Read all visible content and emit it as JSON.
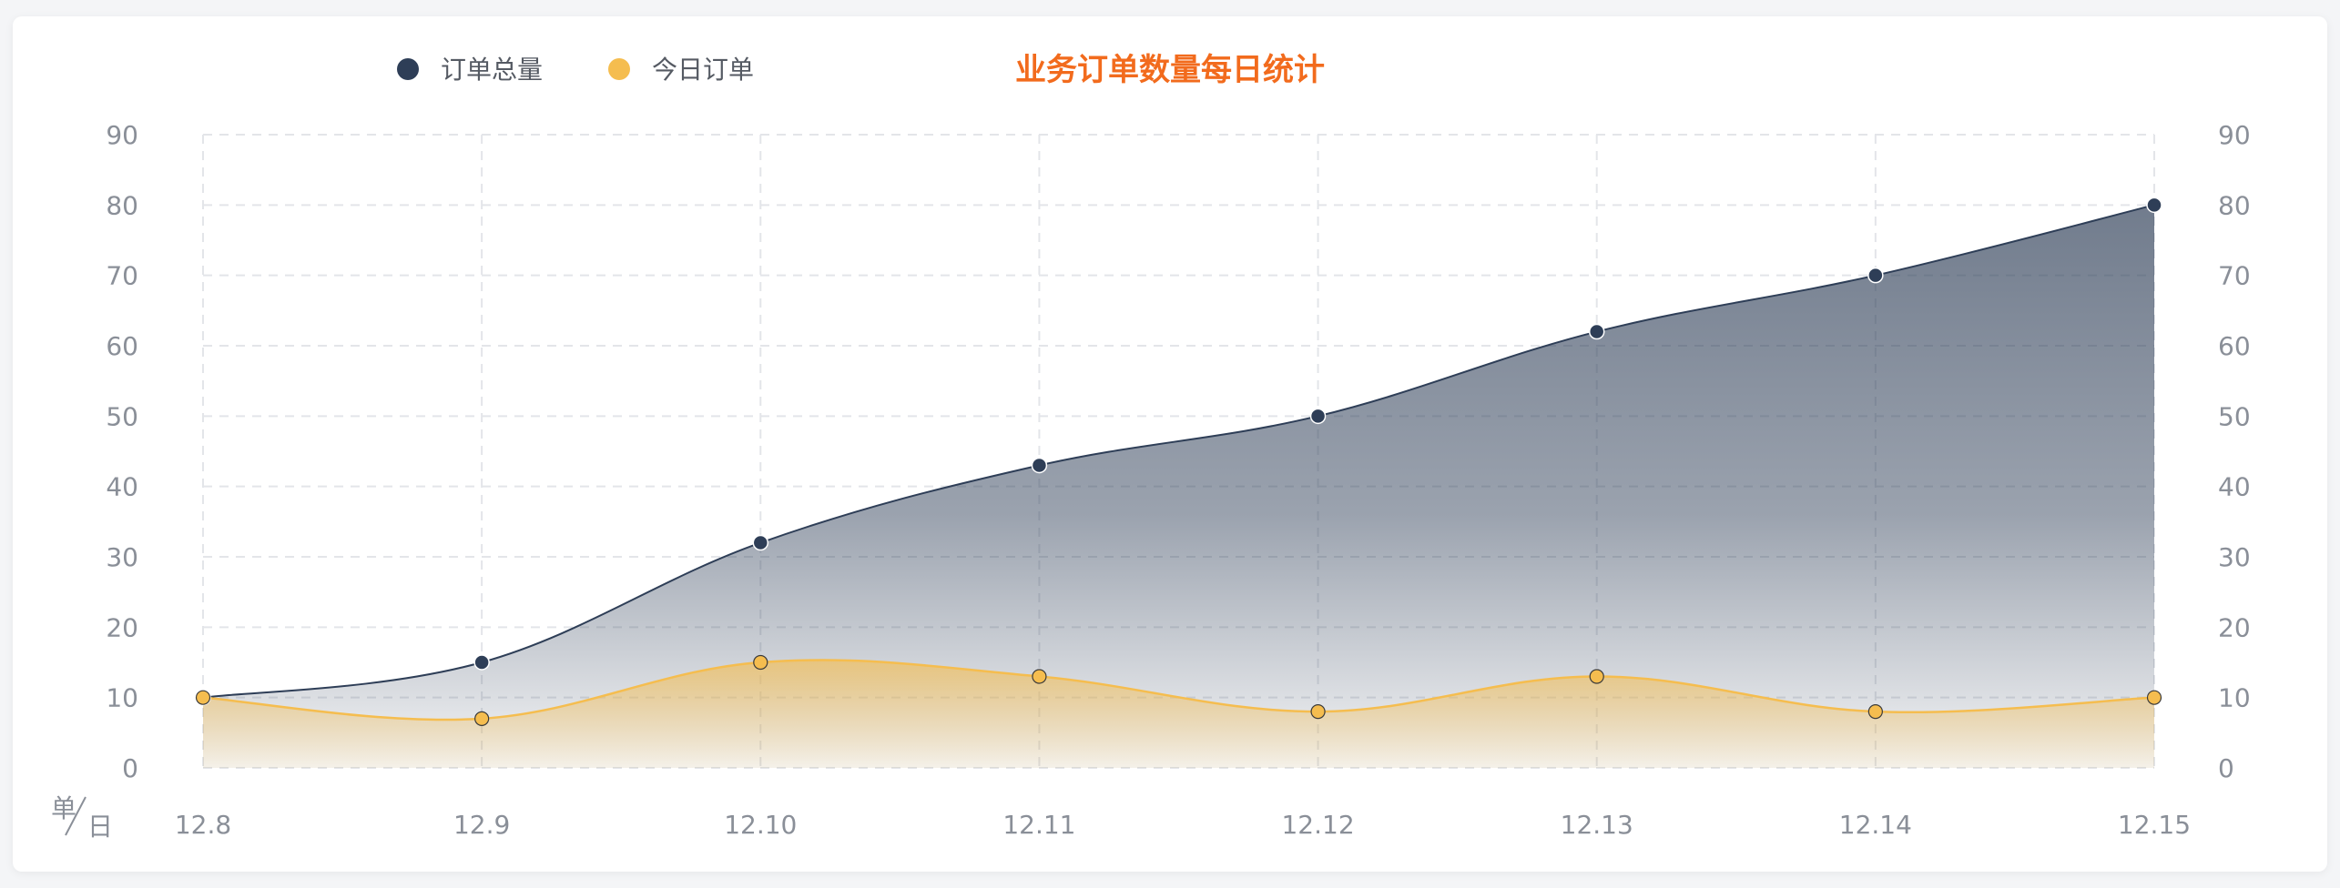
{
  "chart_data": {
    "type": "area",
    "title": "业务订单数量每日统计",
    "categories": [
      "12.8",
      "12.9",
      "12.10",
      "12.11",
      "12.12",
      "12.13",
      "12.14",
      "12.15"
    ],
    "series": [
      {
        "name": "订单总量",
        "values": [
          10,
          15,
          32,
          43,
          50,
          62,
          70,
          80
        ],
        "color": "#2e3e57"
      },
      {
        "name": "今日订单",
        "values": [
          10,
          7,
          15,
          13,
          8,
          13,
          8,
          10
        ],
        "color": "#f5bd4f"
      }
    ],
    "ylim": [
      0,
      90
    ],
    "yticks": [
      0,
      10,
      20,
      30,
      40,
      50,
      60,
      70,
      80,
      90
    ],
    "unit_top": "单",
    "unit_bottom": "日",
    "grid": true,
    "legend_position": "top-left",
    "title_color": "#f26b1d",
    "gridline_color": "#e3e5e9",
    "axis_text_color": "#8a8f98"
  }
}
